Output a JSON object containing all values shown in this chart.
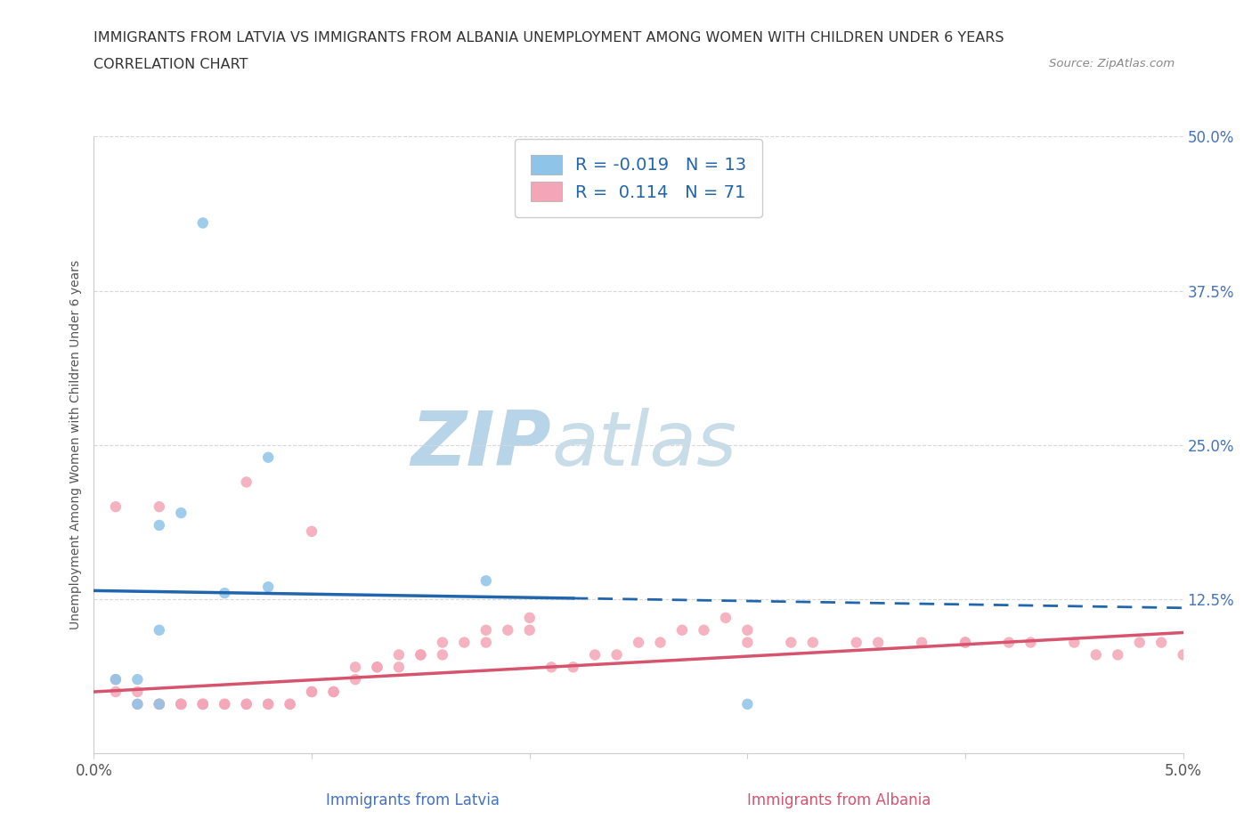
{
  "title_line1": "IMMIGRANTS FROM LATVIA VS IMMIGRANTS FROM ALBANIA UNEMPLOYMENT AMONG WOMEN WITH CHILDREN UNDER 6 YEARS",
  "title_line2": "CORRELATION CHART",
  "source_text": "Source: ZipAtlas.com",
  "ylabel": "Unemployment Among Women with Children Under 6 years",
  "xlabel_blue": "Immigrants from Latvia",
  "xlabel_pink": "Immigrants from Albania",
  "xlim": [
    0.0,
    0.05
  ],
  "ylim": [
    0.0,
    0.5
  ],
  "yticks": [
    0.0,
    0.125,
    0.25,
    0.375,
    0.5
  ],
  "right_ytick_labels": [
    "",
    "12.5%",
    "25.0%",
    "37.5%",
    "50.0%"
  ],
  "xtick_labels": [
    "0.0%",
    "",
    "",
    "",
    "",
    "5.0%"
  ],
  "R_blue": -0.019,
  "N_blue": 13,
  "R_pink": 0.114,
  "N_pink": 71,
  "color_blue": "#8ec4e8",
  "color_pink": "#f4a6b8",
  "color_trend_blue": "#2166ac",
  "color_trend_pink": "#d6546e",
  "watermark_color": "#ddeef8",
  "blue_trend_x0": 0.0,
  "blue_trend_y0": 0.132,
  "blue_trend_x1": 0.05,
  "blue_trend_y1": 0.118,
  "blue_trend_solid_end": 0.022,
  "pink_trend_x0": 0.0,
  "pink_trend_y0": 0.05,
  "pink_trend_x1": 0.05,
  "pink_trend_y1": 0.098,
  "blue_scatter_x": [
    0.005,
    0.008,
    0.004,
    0.003,
    0.002,
    0.003,
    0.001,
    0.002,
    0.006,
    0.008,
    0.003,
    0.018,
    0.03
  ],
  "blue_scatter_y": [
    0.43,
    0.24,
    0.195,
    0.185,
    0.04,
    0.04,
    0.06,
    0.06,
    0.13,
    0.135,
    0.1,
    0.14,
    0.04
  ],
  "pink_scatter_x": [
    0.001,
    0.001,
    0.002,
    0.002,
    0.003,
    0.003,
    0.003,
    0.004,
    0.004,
    0.004,
    0.005,
    0.005,
    0.005,
    0.006,
    0.006,
    0.007,
    0.007,
    0.008,
    0.008,
    0.009,
    0.009,
    0.01,
    0.01,
    0.011,
    0.011,
    0.012,
    0.012,
    0.013,
    0.013,
    0.014,
    0.014,
    0.015,
    0.015,
    0.016,
    0.016,
    0.017,
    0.018,
    0.018,
    0.019,
    0.02,
    0.02,
    0.021,
    0.022,
    0.023,
    0.024,
    0.025,
    0.026,
    0.027,
    0.028,
    0.029,
    0.03,
    0.03,
    0.032,
    0.033,
    0.035,
    0.036,
    0.038,
    0.04,
    0.04,
    0.042,
    0.043,
    0.045,
    0.046,
    0.047,
    0.048,
    0.049,
    0.05,
    0.001,
    0.003,
    0.007,
    0.01
  ],
  "pink_scatter_y": [
    0.06,
    0.05,
    0.05,
    0.04,
    0.04,
    0.04,
    0.04,
    0.04,
    0.04,
    0.04,
    0.04,
    0.04,
    0.04,
    0.04,
    0.04,
    0.04,
    0.04,
    0.04,
    0.04,
    0.04,
    0.04,
    0.05,
    0.05,
    0.05,
    0.05,
    0.06,
    0.07,
    0.07,
    0.07,
    0.07,
    0.08,
    0.08,
    0.08,
    0.08,
    0.09,
    0.09,
    0.09,
    0.1,
    0.1,
    0.1,
    0.11,
    0.07,
    0.07,
    0.08,
    0.08,
    0.09,
    0.09,
    0.1,
    0.1,
    0.11,
    0.09,
    0.1,
    0.09,
    0.09,
    0.09,
    0.09,
    0.09,
    0.09,
    0.09,
    0.09,
    0.09,
    0.09,
    0.08,
    0.08,
    0.09,
    0.09,
    0.08,
    0.2,
    0.2,
    0.22,
    0.18
  ],
  "background_color": "#ffffff",
  "grid_color": "#d8d8d8"
}
